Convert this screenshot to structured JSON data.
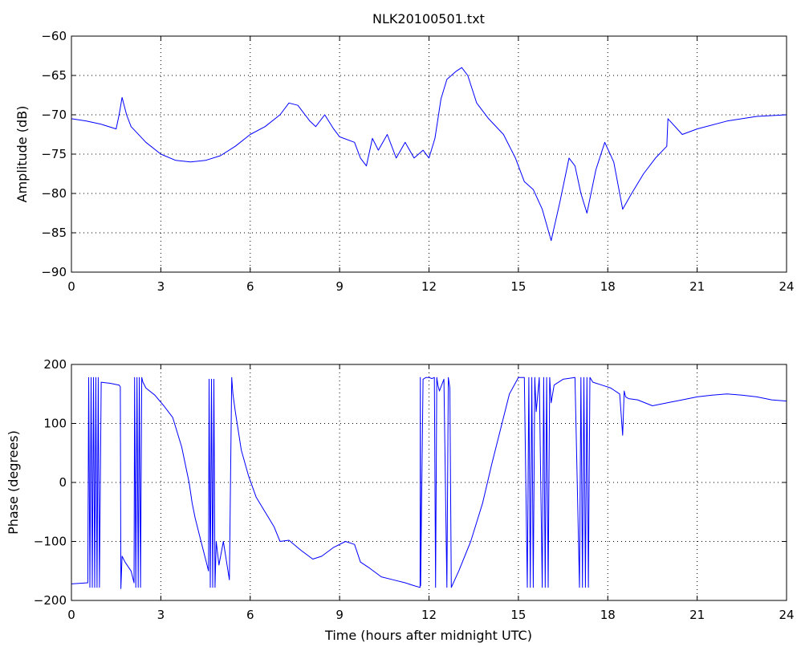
{
  "chart_data": [
    {
      "type": "line",
      "title": "NLK20100501.txt",
      "xlabel": "",
      "ylabel": "Amplitude (dB)",
      "xlim": [
        0,
        24
      ],
      "ylim": [
        -90,
        -60
      ],
      "xticks": [
        0,
        3,
        6,
        9,
        12,
        15,
        18,
        21,
        24
      ],
      "xtick_labels": [
        "0",
        "3",
        "6",
        "9",
        "12",
        "15",
        "18",
        "21",
        "24"
      ],
      "yticks": [
        -90,
        -85,
        -80,
        -75,
        -70,
        -65,
        -60
      ],
      "ytick_labels": [
        "−90",
        "−85",
        "−80",
        "−75",
        "−70",
        "−65",
        "−60"
      ],
      "grid": true,
      "color": "#0000ff",
      "series": [
        {
          "x": [
            0,
            0.5,
            1.0,
            1.5,
            1.6,
            1.7,
            1.85,
            2.0,
            2.5,
            3.0,
            3.5,
            4.0,
            4.5,
            5.0,
            5.5,
            6.0,
            6.5,
            7.0,
            7.3,
            7.6,
            8.0,
            8.2,
            8.5,
            8.8,
            9.0,
            9.5,
            9.7,
            9.9,
            10.1,
            10.3,
            10.6,
            10.9,
            11.2,
            11.5,
            11.8,
            12.0,
            12.2,
            12.4,
            12.6,
            12.9,
            13.1,
            13.3,
            13.6,
            14.0,
            14.5,
            14.9,
            15.2,
            15.5,
            15.8,
            16.1,
            16.4,
            16.7,
            16.9,
            17.1,
            17.3,
            17.6,
            17.9,
            18.2,
            18.5,
            18.8,
            19.2,
            19.6,
            19.98,
            20.02,
            20.5,
            21.0,
            22.0,
            23.0,
            24.0
          ],
          "y": [
            -70.5,
            -70.8,
            -71.2,
            -71.8,
            -70.0,
            -67.8,
            -70.0,
            -71.5,
            -73.5,
            -75.0,
            -75.8,
            -76.0,
            -75.8,
            -75.2,
            -74.0,
            -72.5,
            -71.5,
            -70.0,
            -68.5,
            -68.8,
            -70.8,
            -71.5,
            -70.0,
            -71.8,
            -72.8,
            -73.5,
            -75.5,
            -76.5,
            -73.0,
            -74.5,
            -72.5,
            -75.5,
            -73.5,
            -75.5,
            -74.5,
            -75.5,
            -73.0,
            -68.0,
            -65.5,
            -64.5,
            -64.0,
            -65.0,
            -68.5,
            -70.5,
            -72.5,
            -75.5,
            -78.5,
            -79.5,
            -82.0,
            -86.0,
            -81.0,
            -75.5,
            -76.5,
            -80.0,
            -82.5,
            -77.0,
            -73.5,
            -76.0,
            -82.0,
            -80.0,
            -77.5,
            -75.5,
            -74.0,
            -70.5,
            -72.5,
            -71.8,
            -70.8,
            -70.2,
            -70.0
          ]
        }
      ]
    },
    {
      "type": "line",
      "title": "",
      "xlabel": "Time (hours after midnight UTC)",
      "ylabel": "Phase (degrees)",
      "xlim": [
        0,
        24
      ],
      "ylim": [
        -200,
        200
      ],
      "xticks": [
        0,
        3,
        6,
        9,
        12,
        15,
        18,
        21,
        24
      ],
      "xtick_labels": [
        "0",
        "3",
        "6",
        "9",
        "12",
        "15",
        "18",
        "21",
        "24"
      ],
      "yticks": [
        -200,
        -100,
        0,
        100,
        200
      ],
      "ytick_labels": [
        "−200",
        "−100",
        "0",
        "100",
        "200"
      ],
      "grid": true,
      "color": "#0000ff",
      "series": [
        {
          "x": [
            0,
            0.55,
            0.58,
            0.62,
            0.66,
            0.7,
            0.74,
            0.78,
            0.82,
            0.86,
            0.9,
            0.94,
            1.0,
            1.3,
            1.6,
            1.64,
            1.66,
            1.7,
            1.8,
            2.0,
            2.1,
            2.12,
            2.16,
            2.2,
            2.24,
            2.28,
            2.32,
            2.36,
            2.4,
            2.5,
            2.8,
            3.1,
            3.4,
            3.7,
            3.95,
            4.05,
            4.15,
            4.3,
            4.5,
            4.6,
            4.62,
            4.66,
            4.7,
            4.74,
            4.78,
            4.82,
            4.86,
            4.95,
            5.1,
            5.3,
            5.38,
            5.42,
            5.5,
            5.7,
            5.95,
            6.2,
            6.5,
            6.8,
            7.0,
            7.3,
            7.7,
            8.1,
            8.4,
            8.8,
            9.2,
            9.5,
            9.7,
            10.0,
            10.4,
            10.8,
            11.2,
            11.5,
            11.7,
            11.71,
            11.72,
            11.8,
            11.9,
            12.0,
            12.1,
            12.18,
            12.22,
            12.26,
            12.3,
            12.35,
            12.4,
            12.5,
            12.6,
            12.65,
            12.7,
            12.75,
            13.0,
            13.4,
            13.8,
            14.1,
            14.4,
            14.7,
            15.0,
            15.2,
            15.3,
            15.35,
            15.4,
            15.45,
            15.5,
            15.55,
            15.6,
            15.7,
            15.8,
            15.85,
            15.9,
            15.95,
            16.0,
            16.05,
            16.1,
            16.2,
            16.5,
            16.9,
            17.05,
            17.1,
            17.15,
            17.2,
            17.25,
            17.3,
            17.35,
            17.4,
            17.5,
            17.8,
            18.1,
            18.4,
            18.5,
            18.55,
            18.6,
            18.7,
            19.0,
            19.5,
            20.0,
            20.5,
            21.0,
            21.5,
            22.0,
            22.5,
            23.0,
            23.5,
            24.0
          ],
          "y": [
            -172,
            -170,
            178,
            -178,
            178,
            -178,
            178,
            -178,
            178,
            -178,
            178,
            -178,
            170,
            168,
            165,
            162,
            -180,
            -125,
            -135,
            -150,
            -170,
            178,
            -178,
            178,
            -178,
            178,
            -178,
            178,
            170,
            160,
            148,
            130,
            110,
            60,
            0,
            -35,
            -60,
            -90,
            -130,
            -150,
            175,
            -178,
            175,
            -178,
            175,
            -178,
            -100,
            -140,
            -100,
            -165,
            178,
            150,
            120,
            55,
            10,
            -25,
            -50,
            -75,
            -100,
            -98,
            -115,
            -130,
            -125,
            -110,
            -100,
            -105,
            -135,
            -145,
            -160,
            -165,
            -170,
            -175,
            -178,
            178,
            -175,
            175,
            178,
            178,
            176,
            178,
            -178,
            178,
            165,
            155,
            162,
            175,
            -178,
            178,
            160,
            -178,
            -150,
            -100,
            -35,
            30,
            90,
            150,
            178,
            178,
            -178,
            178,
            -178,
            178,
            -178,
            178,
            120,
            178,
            -178,
            178,
            -178,
            178,
            -178,
            178,
            135,
            165,
            175,
            178,
            -178,
            178,
            -178,
            178,
            -178,
            178,
            -178,
            178,
            170,
            165,
            160,
            150,
            80,
            155,
            145,
            142,
            140,
            130,
            135,
            140,
            145,
            148,
            150,
            148,
            145,
            140,
            138
          ]
        }
      ]
    }
  ]
}
